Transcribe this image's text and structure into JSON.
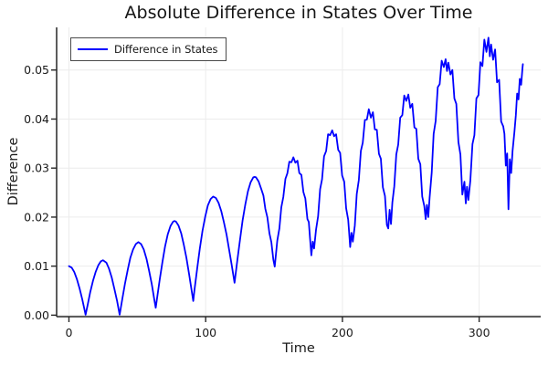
{
  "chart_data": {
    "type": "line",
    "title": "Absolute Difference in States Over Time",
    "xlabel": "Time",
    "ylabel": "Difference",
    "xlim": [
      -9,
      345
    ],
    "ylim": [
      -0.0003,
      0.0587
    ],
    "grid": true,
    "legend_position": "top-left",
    "xticks": {
      "values": [
        0,
        100,
        200,
        300
      ],
      "labels": [
        "0",
        "100",
        "200",
        "300"
      ]
    },
    "yticks": {
      "values": [
        0,
        0.01,
        0.02,
        0.03,
        0.04,
        0.05
      ],
      "labels": [
        "0.00",
        "0.01",
        "0.02",
        "0.03",
        "0.04",
        "0.05"
      ]
    },
    "series": [
      {
        "name": "Difference in States",
        "color": "#0000ff",
        "x": [
          0,
          2,
          3.9,
          5.9,
          7.8,
          9.8,
          11.7,
          12.2,
          13.7,
          15.6,
          17.6,
          19.5,
          21.5,
          23.4,
          24.9,
          27.4,
          29.3,
          31.3,
          33.2,
          35.2,
          37.1,
          39.1,
          41,
          43,
          44.9,
          46.9,
          48.9,
          50.8,
          52.8,
          54.7,
          56.7,
          58.6,
          60.6,
          62.5,
          63.5,
          64.5,
          66.4,
          68.4,
          70.3,
          72.3,
          74.3,
          76.2,
          77.2,
          78.2,
          80.1,
          82.1,
          84,
          86,
          87.9,
          89.9,
          90.9,
          91.8,
          93.8,
          95.7,
          97.7,
          99.7,
          101.6,
          103.6,
          105.5,
          107.5,
          109.4,
          111.4,
          113.3,
          115.3,
          117.2,
          119.2,
          121.1,
          123.1,
          125.1,
          127,
          129,
          130.9,
          132.9,
          134.8,
          135.8,
          136.8,
          138.7,
          140.7,
          142.2,
          143.6,
          145.1,
          146.6,
          148,
          149.5,
          150.5,
          152.4,
          153.9,
          155.3,
          156.8,
          158.3,
          159.7,
          161.2,
          162.7,
          164.1,
          165.6,
          167.1,
          168.5,
          170,
          171.5,
          172.9,
          174.4,
          175.4,
          176.3,
          177.3,
          178.3,
          179.3,
          180.7,
          182.2,
          183.7,
          185.1,
          186.6,
          188.1,
          189.5,
          191,
          192.5,
          193.9,
          195.4,
          196.9,
          198.3,
          199.8,
          201.3,
          202.7,
          204.2,
          204.7,
          205.7,
          206.6,
          207.6,
          209.1,
          210.5,
          212,
          213.5,
          214.9,
          216.4,
          217.9,
          219.3,
          220.8,
          222.3,
          223.7,
          225.2,
          226.7,
          228.1,
          229.6,
          231.1,
          232.5,
          233.5,
          234.5,
          235.5,
          236.5,
          237.9,
          239.4,
          240.8,
          242.3,
          243.8,
          245.2,
          246.7,
          248.2,
          249.6,
          251.1,
          252.6,
          254,
          255.5,
          257,
          258.4,
          259.9,
          260.9,
          261.8,
          262.8,
          263.8,
          265.3,
          266.7,
          268.2,
          269.7,
          271.1,
          272.6,
          274.1,
          275.5,
          276.5,
          277.5,
          279,
          280.4,
          281.9,
          283.3,
          284.8,
          286.3,
          287.7,
          289.2,
          290.2,
          291.1,
          292.1,
          293.6,
          295.1,
          296.5,
          298,
          299.5,
          300.9,
          302.4,
          303.8,
          305.3,
          306.8,
          307.8,
          308.7,
          310.2,
          311.7,
          313.1,
          314.6,
          316.1,
          317.6,
          318.5,
          319.5,
          320.5,
          321.4,
          322.4,
          323.4,
          324.4,
          325.8,
          326.8,
          327.8,
          328.8,
          329.7,
          330.7,
          331.7,
          332
        ],
        "y": [
          0.01,
          0.0097,
          0.0088,
          0.0073,
          0.0054,
          0.0032,
          0.0007,
          0.0001,
          0.0021,
          0.0047,
          0.007,
          0.0088,
          0.0102,
          0.011,
          0.0112,
          0.0107,
          0.0095,
          0.0077,
          0.0054,
          0.0029,
          0.0001,
          0.0034,
          0.0065,
          0.0093,
          0.0117,
          0.0134,
          0.0145,
          0.0149,
          0.0145,
          0.0134,
          0.0115,
          0.0091,
          0.0063,
          0.0031,
          0.0015,
          0.0035,
          0.0073,
          0.0109,
          0.014,
          0.0165,
          0.0182,
          0.0191,
          0.0192,
          0.0191,
          0.0183,
          0.0167,
          0.0144,
          0.0116,
          0.0083,
          0.0047,
          0.0029,
          0.0051,
          0.0095,
          0.0136,
          0.0172,
          0.0201,
          0.0224,
          0.0237,
          0.0242,
          0.0239,
          0.0229,
          0.0212,
          0.019,
          0.0164,
          0.0133,
          0.01,
          0.0066,
          0.0111,
          0.0154,
          0.0193,
          0.0226,
          0.0253,
          0.0271,
          0.0281,
          0.0282,
          0.0281,
          0.0273,
          0.0257,
          0.0244,
          0.0217,
          0.02,
          0.0167,
          0.0149,
          0.0113,
          0.0099,
          0.0152,
          0.0177,
          0.022,
          0.0241,
          0.0278,
          0.0289,
          0.0313,
          0.0312,
          0.0322,
          0.0311,
          0.0315,
          0.029,
          0.0286,
          0.0251,
          0.0238,
          0.0196,
          0.019,
          0.0158,
          0.0122,
          0.015,
          0.0136,
          0.0174,
          0.0202,
          0.0257,
          0.0277,
          0.0324,
          0.0335,
          0.0369,
          0.0367,
          0.0377,
          0.0365,
          0.0369,
          0.0337,
          0.0331,
          0.0285,
          0.0272,
          0.0218,
          0.0195,
          0.0178,
          0.0139,
          0.0168,
          0.015,
          0.0183,
          0.0247,
          0.0276,
          0.0335,
          0.0352,
          0.0398,
          0.0399,
          0.042,
          0.0403,
          0.0414,
          0.0379,
          0.0378,
          0.0329,
          0.0319,
          0.0261,
          0.0243,
          0.0184,
          0.0177,
          0.0215,
          0.0186,
          0.023,
          0.0263,
          0.0328,
          0.0348,
          0.0403,
          0.0408,
          0.0448,
          0.0437,
          0.045,
          0.0423,
          0.0431,
          0.0383,
          0.038,
          0.0319,
          0.0308,
          0.0242,
          0.0222,
          0.0196,
          0.0225,
          0.02,
          0.024,
          0.0291,
          0.037,
          0.0396,
          0.0465,
          0.0471,
          0.0519,
          0.0506,
          0.0522,
          0.0498,
          0.0515,
          0.0491,
          0.05,
          0.0442,
          0.0431,
          0.0353,
          0.0328,
          0.0246,
          0.0272,
          0.0228,
          0.0262,
          0.0235,
          0.0275,
          0.0349,
          0.0367,
          0.0442,
          0.0449,
          0.0516,
          0.0508,
          0.0562,
          0.0537,
          0.0566,
          0.0528,
          0.0552,
          0.0521,
          0.0542,
          0.0475,
          0.048,
          0.0395,
          0.0385,
          0.037,
          0.0305,
          0.033,
          0.0216,
          0.0318,
          0.029,
          0.0335,
          0.0375,
          0.0408,
          0.0452,
          0.044,
          0.0482,
          0.047,
          0.0505,
          0.0512
        ]
      }
    ]
  },
  "colors": {
    "line": "#0000ff",
    "grid": "#ececec",
    "spine": "#262626",
    "tick_text": "#1a1a1a"
  }
}
